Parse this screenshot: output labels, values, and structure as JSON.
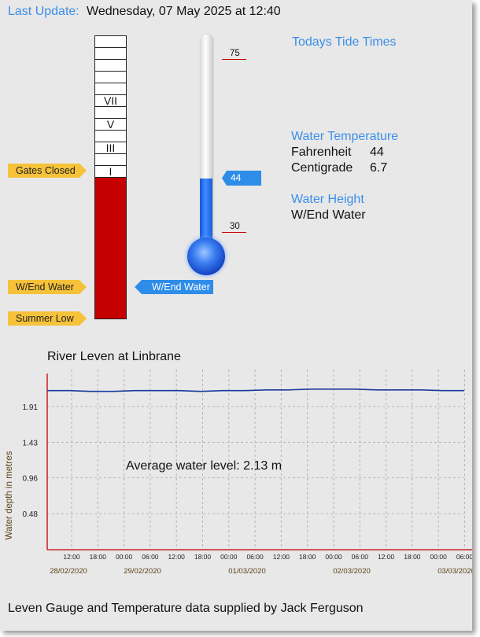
{
  "header": {
    "last_update_label": "Last Update:",
    "last_update_value": "Wednesday, 07 May 2025 at 12:40"
  },
  "gauge": {
    "roman_labels": [
      "VII",
      "V",
      "III",
      "I"
    ],
    "fill_color": "#c40000",
    "tags": {
      "gates_closed": "Gates Closed",
      "wend_water": "W/End Water",
      "summer_low": "Summer Low",
      "current_marker": "W/End Water"
    }
  },
  "thermometer": {
    "tick_high": "75",
    "tick_low": "30",
    "current_value": "44",
    "scale_high": 75,
    "scale_low": 30,
    "reading": 44
  },
  "info": {
    "tide_heading": "Todays Tide Times",
    "temperature_heading": "Water Temperature",
    "fahrenheit_label": "Fahrenheit",
    "fahrenheit_value": "44",
    "centigrade_label": "Centigrade",
    "centigrade_value": "6.7",
    "height_heading": "Water Height",
    "height_value": "W/End Water"
  },
  "chart": {
    "title": "River Leven at Linbrane"
  },
  "chart_data": {
    "type": "line",
    "title": "River Leven at Linbrane",
    "ylabel": "Water depth in metres",
    "yticks": [
      "0.48",
      "0.96",
      "1.43",
      "1.91"
    ],
    "ytick_values": [
      0.48,
      0.96,
      1.43,
      1.91
    ],
    "ylim": [
      0,
      2.4
    ],
    "time_ticks": [
      "12:00",
      "18:00",
      "00:00",
      "06:00",
      "12:00",
      "18:00",
      "00:00",
      "06:00",
      "12:00",
      "18:00",
      "00:00",
      "06:00",
      "12:00",
      "18:00",
      "00:00",
      "06:00"
    ],
    "date_labels": [
      "28/02/2020",
      "29/02/2020",
      "01/03/2020",
      "02/03/2020",
      "03/03/2020"
    ],
    "annotation": "Average water level: 2.13 m",
    "grid": true,
    "series": [
      {
        "color": "#1a3a9c",
        "x": [
          0,
          6,
          12,
          18,
          24,
          30,
          36,
          42,
          48,
          54,
          60,
          66,
          72,
          78,
          84,
          90,
          96,
          102,
          108,
          114
        ],
        "y": [
          2.12,
          2.12,
          2.11,
          2.11,
          2.12,
          2.12,
          2.12,
          2.11,
          2.12,
          2.12,
          2.13,
          2.13,
          2.14,
          2.14,
          2.14,
          2.13,
          2.13,
          2.13,
          2.12,
          2.12
        ]
      }
    ]
  },
  "footer": {
    "credit": "Leven Gauge and Temperature data supplied by Jack Ferguson"
  }
}
